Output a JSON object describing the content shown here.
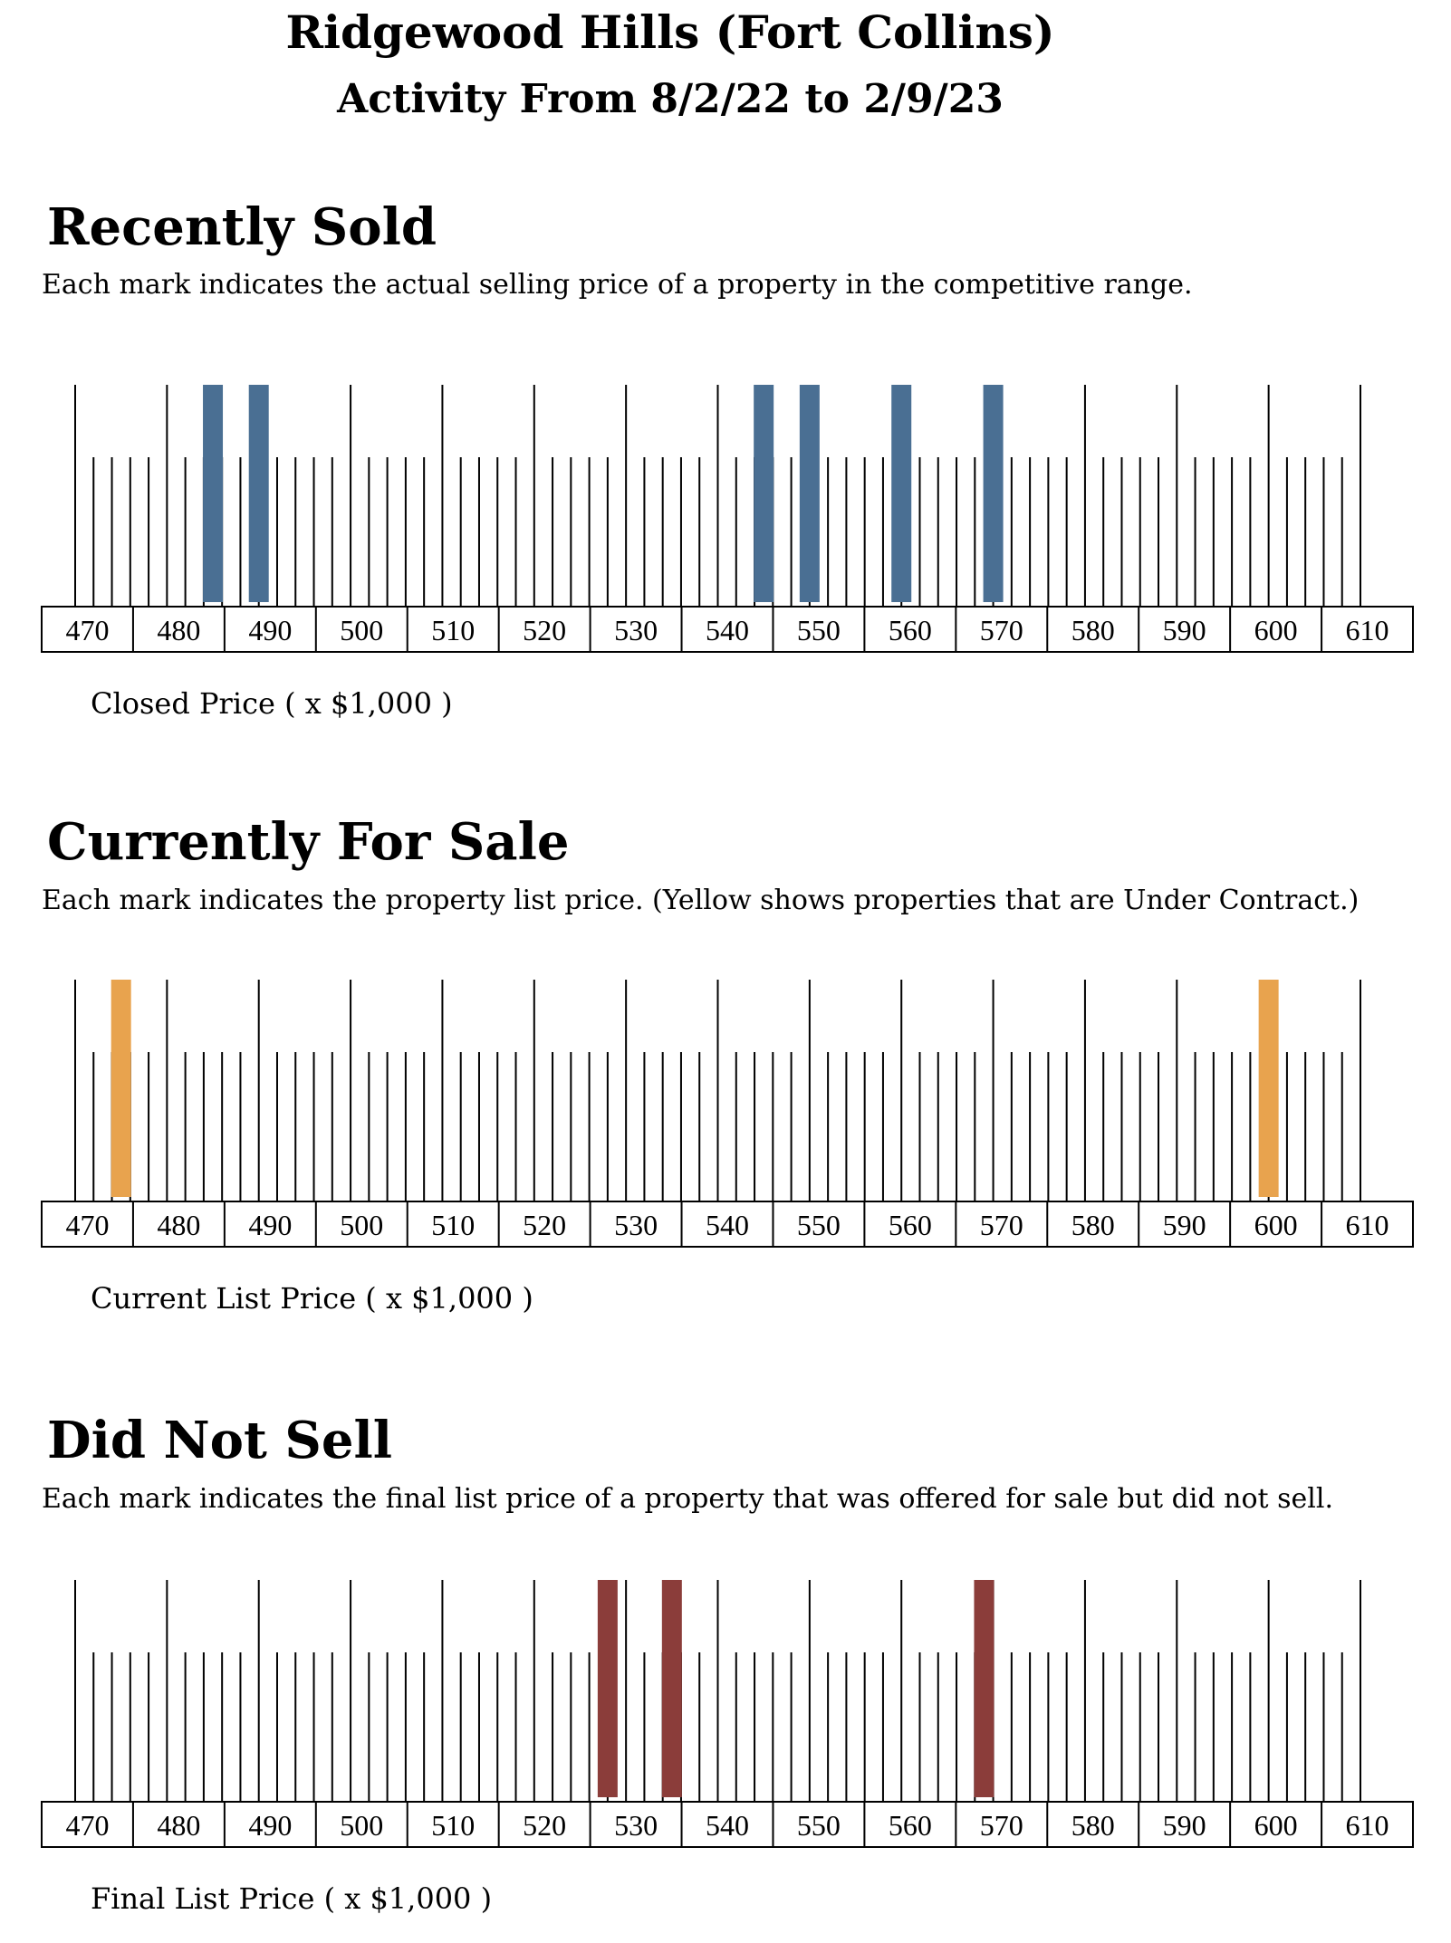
{
  "header": {
    "title": "Ridgewood Hills (Fort Collins)",
    "subtitle": "Activity From 8/2/22 to 2/9/23"
  },
  "colors": {
    "sold": "#4a6f93",
    "for_sale": "#e8a34e",
    "not_sold": "#8b3d3a",
    "ticks": "#000000"
  },
  "chart_data": [
    {
      "id": "sold",
      "type": "bar",
      "title": "Recently Sold",
      "description": "Each mark indicates the actual selling price of a property in the competitive range.",
      "xlabel": "Closed Price ( x $1,000 )",
      "ylabel": "",
      "xlim": [
        470,
        610
      ],
      "tick_labels": [
        "470",
        "480",
        "490",
        "500",
        "510",
        "520",
        "530",
        "540",
        "550",
        "560",
        "570",
        "580",
        "590",
        "600",
        "610"
      ],
      "values": [
        485,
        490,
        545,
        550,
        560,
        570
      ],
      "color_key": "sold"
    },
    {
      "id": "for_sale",
      "type": "bar",
      "title": "Currently For Sale",
      "description": "Each mark indicates the property list price. (Yellow shows properties that are Under Contract.)",
      "xlabel": "Current List Price ( x $1,000 )",
      "ylabel": "",
      "xlim": [
        470,
        610
      ],
      "tick_labels": [
        "470",
        "480",
        "490",
        "500",
        "510",
        "520",
        "530",
        "540",
        "550",
        "560",
        "570",
        "580",
        "590",
        "600",
        "610"
      ],
      "values": [
        475,
        600
      ],
      "color_key": "for_sale"
    },
    {
      "id": "not_sold",
      "type": "bar",
      "title": "Did Not Sell",
      "description": "Each mark indicates the final list price of a property that was offered for sale but did not sell.",
      "xlabel": "Final List Price ( x $1,000 )",
      "ylabel": "",
      "xlim": [
        470,
        610
      ],
      "tick_labels": [
        "470",
        "480",
        "490",
        "500",
        "510",
        "520",
        "530",
        "540",
        "550",
        "560",
        "570",
        "580",
        "590",
        "600",
        "610"
      ],
      "values": [
        528,
        535,
        569
      ],
      "color_key": "not_sold"
    }
  ]
}
